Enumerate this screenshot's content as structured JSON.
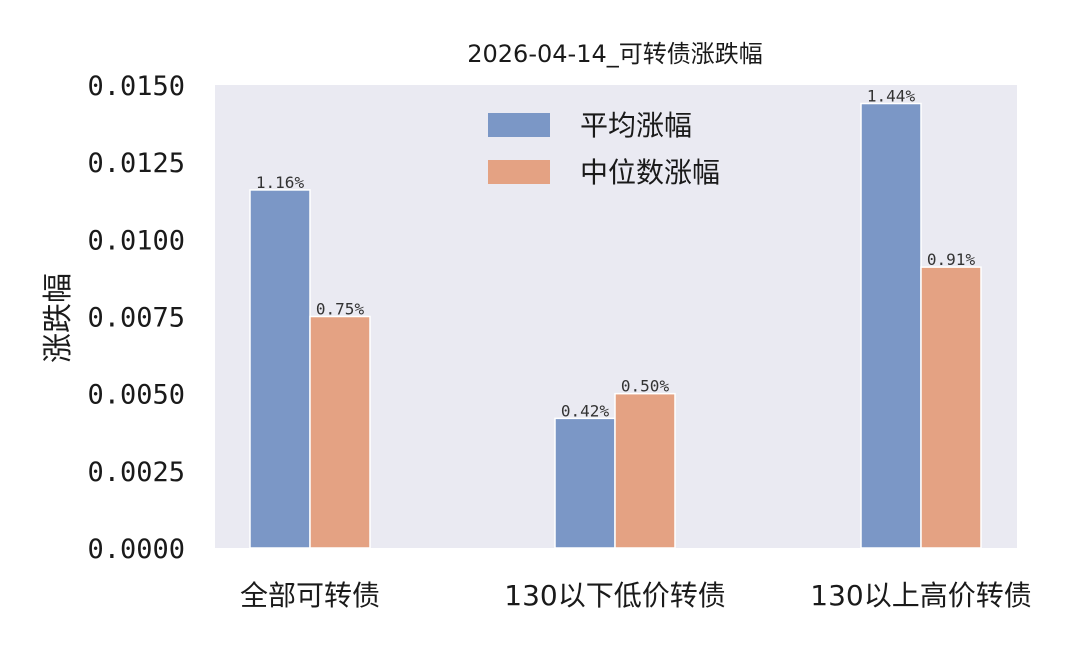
{
  "chart_data": {
    "type": "bar",
    "title": "2026-04-14_可转债涨跌幅",
    "xlabel": "",
    "ylabel": "涨跌幅",
    "categories": [
      "全部可转债",
      "130以下低价转债",
      "130以上高价转债"
    ],
    "series": [
      {
        "name": "平均涨幅",
        "values": [
          0.0116,
          0.0042,
          0.0144
        ],
        "labels": [
          "1.16%",
          "0.42%",
          "1.44%"
        ],
        "color": "#7b97c6"
      },
      {
        "name": "中位数涨幅",
        "values": [
          0.0075,
          0.005,
          0.0091
        ],
        "labels": [
          "0.75%",
          "0.50%",
          "0.91%"
        ],
        "color": "#e4a283"
      }
    ],
    "ylim": [
      0,
      0.015
    ],
    "yticks": [
      "0.0000",
      "0.0025",
      "0.0050",
      "0.0075",
      "0.0100",
      "0.0125",
      "0.0150"
    ],
    "grid": false,
    "legend_position": "top-center",
    "background_color": "#eaeaf2"
  }
}
